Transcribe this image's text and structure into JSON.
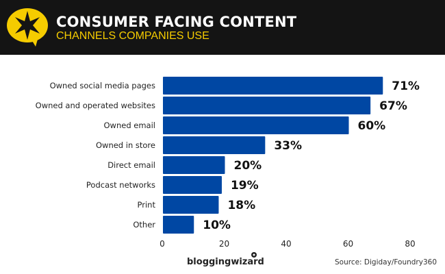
{
  "header": {
    "title": "CONSUMER FACING CONTENT",
    "subtitle": "CHANNELS COMPANIES USE",
    "background": "#141414",
    "accent": "#f5cc00"
  },
  "footer": {
    "brand": "bloggingwizard",
    "source": "Source: Digiday/Foundry360"
  },
  "chart_data": {
    "type": "bar",
    "orientation": "horizontal",
    "categories": [
      "Owned social media pages",
      "Owned and operated websites",
      "Owned email",
      "Owned in store",
      "Direct email",
      "Podcast networks",
      "Print",
      "Other"
    ],
    "values": [
      71,
      67,
      60,
      33,
      20,
      19,
      18,
      10
    ],
    "value_labels": [
      "71%",
      "67%",
      "60%",
      "33%",
      "20%",
      "19%",
      "18%",
      "10%"
    ],
    "xticks": [
      0,
      20,
      40,
      60,
      80
    ],
    "xlim": [
      0,
      80
    ],
    "bar_color": "#0047a3",
    "grid": false
  }
}
